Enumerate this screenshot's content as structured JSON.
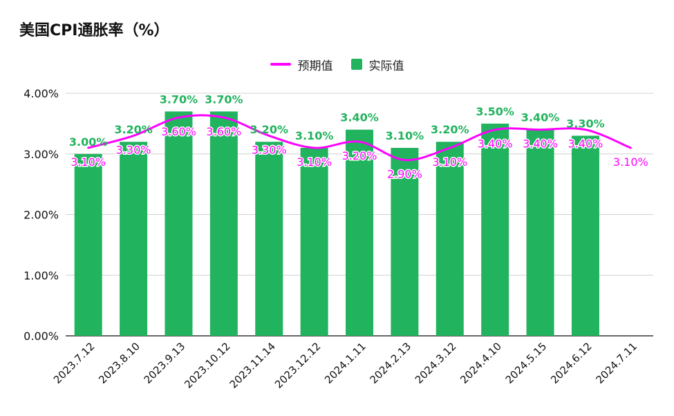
{
  "title": "美国CPI通胀率（%）",
  "colors": {
    "actual": "#22b35e",
    "expected": "#ff00ff",
    "grid": "#d0d0d0",
    "axis": "#333333",
    "text": "#111111"
  },
  "legend": [
    {
      "label": "预期值",
      "swatch": "line",
      "color": "#ff00ff"
    },
    {
      "label": "实际值",
      "swatch": "box",
      "color": "#22b35e"
    }
  ],
  "chart_data": {
    "type": "bar",
    "categories": [
      "2023.7.12",
      "2023.8.10",
      "2023.9.13",
      "2023.10.12",
      "2023.11.14",
      "2023.12.12",
      "2024.1.11",
      "2024.2.13",
      "2024.3.12",
      "2024.4.10",
      "2024.5.15",
      "2024.6.12",
      "2024.7.11"
    ],
    "series": [
      {
        "name": "实际值",
        "kind": "bar",
        "values": [
          3.0,
          3.2,
          3.7,
          3.7,
          3.2,
          3.1,
          3.4,
          3.1,
          3.2,
          3.5,
          3.4,
          3.3,
          null
        ],
        "labels": [
          "3.00%",
          "3.20%",
          "3.70%",
          "3.70%",
          "3.20%",
          "3.10%",
          "3.40%",
          "3.10%",
          "3.20%",
          "3.50%",
          "3.40%",
          "3.30%",
          ""
        ]
      },
      {
        "name": "预期值",
        "kind": "line",
        "values": [
          3.1,
          3.3,
          3.6,
          3.6,
          3.3,
          3.1,
          3.2,
          2.9,
          3.1,
          3.4,
          3.4,
          3.4,
          3.1
        ],
        "labels": [
          "3.10%",
          "3.30%",
          "3.60%",
          "3.60%",
          "3.30%",
          "3.10%",
          "3.20%",
          "2.90%",
          "3.10%",
          "3.40%",
          "3.40%",
          "3.40%",
          "3.10%"
        ]
      }
    ],
    "y_ticks": [
      0,
      1,
      2,
      3,
      4
    ],
    "y_tick_labels": [
      "0.00%",
      "1.00%",
      "2.00%",
      "3.00%",
      "4.00%"
    ],
    "ylim": [
      0,
      4
    ],
    "grid": true,
    "legend_position": "top-center"
  }
}
